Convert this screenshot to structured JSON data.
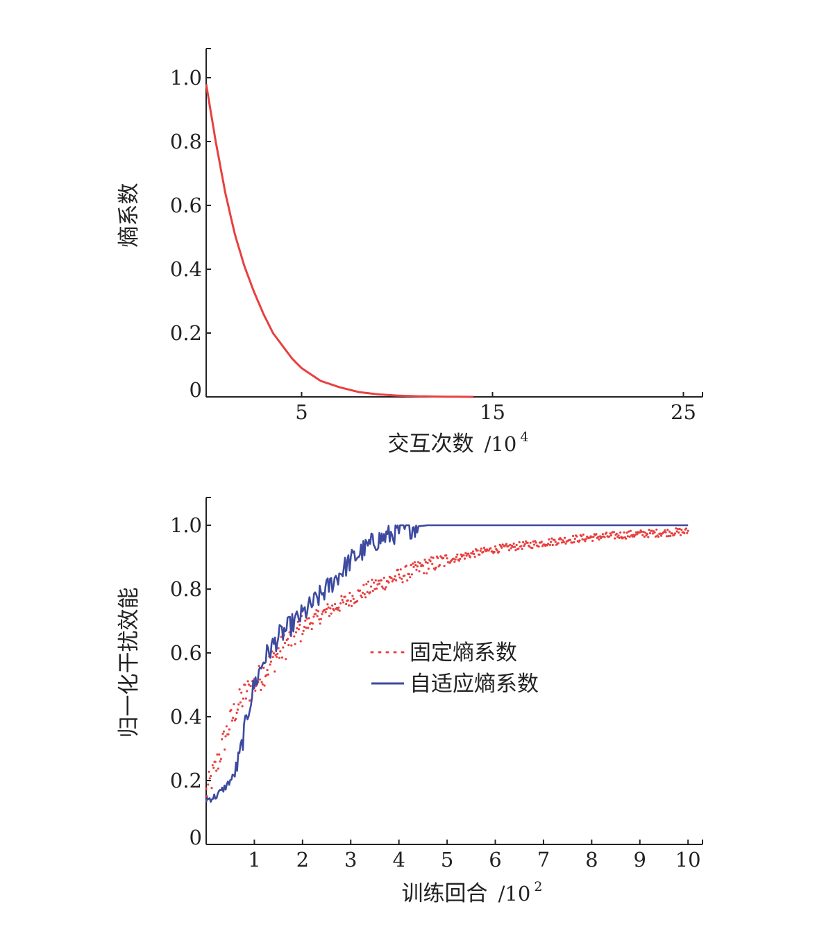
{
  "chart_data": [
    {
      "type": "line",
      "title": "",
      "xlabel": "交互次数",
      "xunit": "/10",
      "xunit_exp": "4",
      "ylabel": "熵系数",
      "xlim": [
        0,
        26
      ],
      "ylim": [
        0,
        1.1
      ],
      "xticks": [
        5,
        15,
        25
      ],
      "xtick_labels": [
        "5",
        "15",
        "25"
      ],
      "yticks": [
        0,
        0.2,
        0.4,
        0.6,
        0.8,
        1.0
      ],
      "ytick_labels": [
        "0",
        "0.2",
        "0.4",
        "0.6",
        "0.8",
        "1.0"
      ],
      "grid": false,
      "series": [
        {
          "color": "#e8403f",
          "x": [
            0,
            0.5,
            1,
            1.5,
            2,
            2.5,
            3,
            3.5,
            4,
            4.5,
            5,
            5.5,
            6,
            7,
            8,
            9,
            10,
            11,
            12,
            13,
            14
          ],
          "y": [
            0.98,
            0.8,
            0.64,
            0.51,
            0.41,
            0.33,
            0.26,
            0.2,
            0.16,
            0.12,
            0.09,
            0.07,
            0.05,
            0.03,
            0.015,
            0.008,
            0.004,
            0.002,
            0.001,
            0.0005,
            0.0
          ]
        }
      ]
    },
    {
      "type": "line",
      "title": "",
      "xlabel": "训练回合",
      "xunit": "/10",
      "xunit_exp": "2",
      "ylabel": "归一化干扰效能",
      "xlim": [
        0,
        10.3
      ],
      "ylim": [
        0,
        1.1
      ],
      "xticks": [
        1,
        2,
        3,
        4,
        5,
        6,
        7,
        8,
        9,
        10
      ],
      "xtick_labels": [
        "1",
        "2",
        "3",
        "4",
        "5",
        "6",
        "7",
        "8",
        "9",
        "10"
      ],
      "yticks": [
        0,
        0.2,
        0.4,
        0.6,
        0.8,
        1.0
      ],
      "ytick_labels": [
        "0",
        "0.2",
        "0.4",
        "0.6",
        "0.8",
        "1.0"
      ],
      "grid": false,
      "legend_position": "center-right",
      "series": [
        {
          "name": "固定熵系数",
          "style": "dotted",
          "color": "#e8403f",
          "x": [
            0,
            0.2,
            0.4,
            0.6,
            0.8,
            1.0,
            1.2,
            1.5,
            2.0,
            2.5,
            3.0,
            3.5,
            4.0,
            4.5,
            5.0,
            5.5,
            6.0,
            6.5,
            7.0,
            7.5,
            8.0,
            8.5,
            9.0,
            9.5,
            10.0
          ],
          "y": [
            0.16,
            0.24,
            0.34,
            0.42,
            0.47,
            0.5,
            0.54,
            0.6,
            0.68,
            0.73,
            0.77,
            0.81,
            0.84,
            0.87,
            0.89,
            0.91,
            0.925,
            0.935,
            0.945,
            0.955,
            0.962,
            0.968,
            0.973,
            0.977,
            0.98
          ]
        },
        {
          "name": "自适应熵系数",
          "style": "solid",
          "color": "#3d4aa0",
          "x": [
            0,
            0.2,
            0.4,
            0.6,
            0.7,
            0.8,
            0.9,
            1.0,
            1.2,
            1.5,
            2.0,
            2.5,
            3.0,
            3.5,
            4.0,
            4.3,
            4.6,
            5.0,
            6.0,
            7.0,
            8.0,
            9.0,
            10.0
          ],
          "y": [
            0.14,
            0.15,
            0.18,
            0.22,
            0.28,
            0.36,
            0.44,
            0.5,
            0.58,
            0.65,
            0.72,
            0.8,
            0.89,
            0.95,
            0.98,
            0.995,
            1.0,
            1.0,
            1.0,
            1.0,
            1.0,
            1.0,
            1.0
          ]
        }
      ]
    }
  ]
}
